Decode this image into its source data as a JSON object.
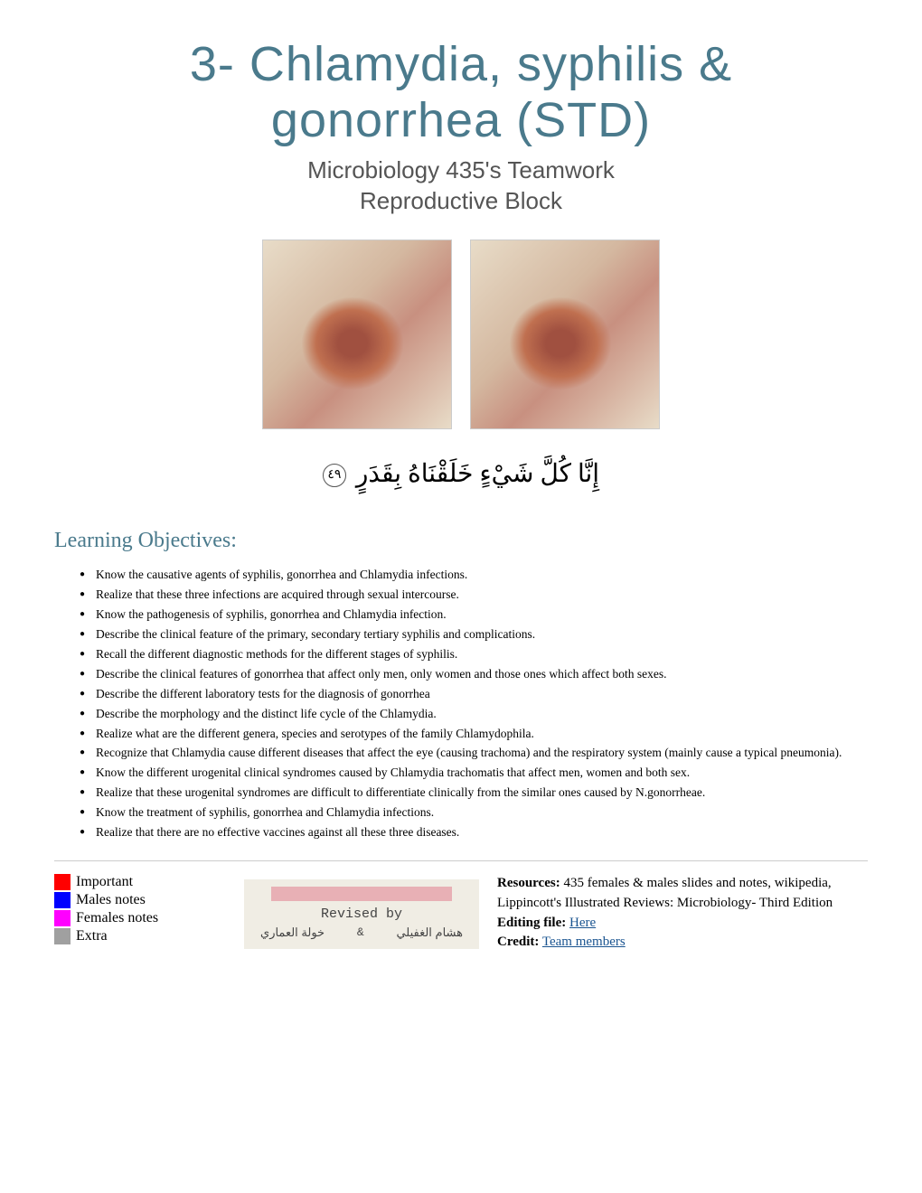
{
  "header": {
    "title_line1": "3- Chlamydia, syphilis &",
    "title_line2": "gonorrhea (STD)",
    "subtitle_line1": "Microbiology 435's Teamwork",
    "subtitle_line2": "Reproductive Block"
  },
  "arabic": {
    "verse_text": "إِنَّا كُلَّ شَيْءٍ خَلَقْنَاهُ بِقَدَرٍ",
    "verse_number": "٤٩"
  },
  "objectives_heading": "Learning Objectives:",
  "objectives": [
    "Know the causative agents of syphilis, gonorrhea and Chlamydia infections.",
    "Realize that these three infections are acquired through sexual intercourse.",
    "Know the pathogenesis of syphilis, gonorrhea and Chlamydia infection.",
    "Describe the clinical feature of the primary, secondary tertiary syphilis and complications.",
    "Recall the different diagnostic methods for the different stages of syphilis.",
    "Describe the clinical features of gonorrhea that affect only men, only women and those ones which affect both sexes.",
    "Describe the different laboratory tests for the diagnosis of gonorrhea",
    "Describe the morphology and the distinct life cycle of the Chlamydia.",
    "Realize what are the different genera, species and serotypes of the family Chlamydophila.",
    "Recognize that Chlamydia cause different diseases that affect the eye (causing trachoma) and the respiratory system (mainly cause a typical pneumonia).",
    "Know the different urogenital clinical syndromes caused by Chlamydia trachomatis that affect men, women and both sex.",
    "Realize that these urogenital syndromes are difficult to differentiate clinically from the similar ones caused by N.gonorrheae.",
    "Know the treatment of syphilis, gonorrhea and Chlamydia infections.",
    "Realize that there are no effective vaccines against all these three diseases."
  ],
  "legend": [
    {
      "label": "Important",
      "color": "#ff0000"
    },
    {
      "label": "Males notes",
      "color": "#0000ff"
    },
    {
      "label": "Females notes",
      "color": "#ff00ff"
    },
    {
      "label": "Extra",
      "color": "#a0a0a0"
    }
  ],
  "revised": {
    "bar_color": "#e8b0b5",
    "box_bg": "#f0ede4",
    "label": "Revised by",
    "name_left": "هشام الغفيلي",
    "amp": "&",
    "name_right": "خولة العماري"
  },
  "resources": {
    "label": "Resources:",
    "text1": " 435 females & males slides and notes, wikipedia,",
    "text2": "Lippincott's Illustrated Reviews: Microbiology- Third Edition",
    "editing_label": "Editing file:",
    "editing_link": "Here",
    "credit_label": "Credit:",
    "credit_link": "Team members"
  },
  "colors": {
    "title_color": "#4a7a8c",
    "subtitle_color": "#555555",
    "link_color": "#1a5490",
    "divider_color": "#cccccc",
    "background": "#ffffff"
  }
}
